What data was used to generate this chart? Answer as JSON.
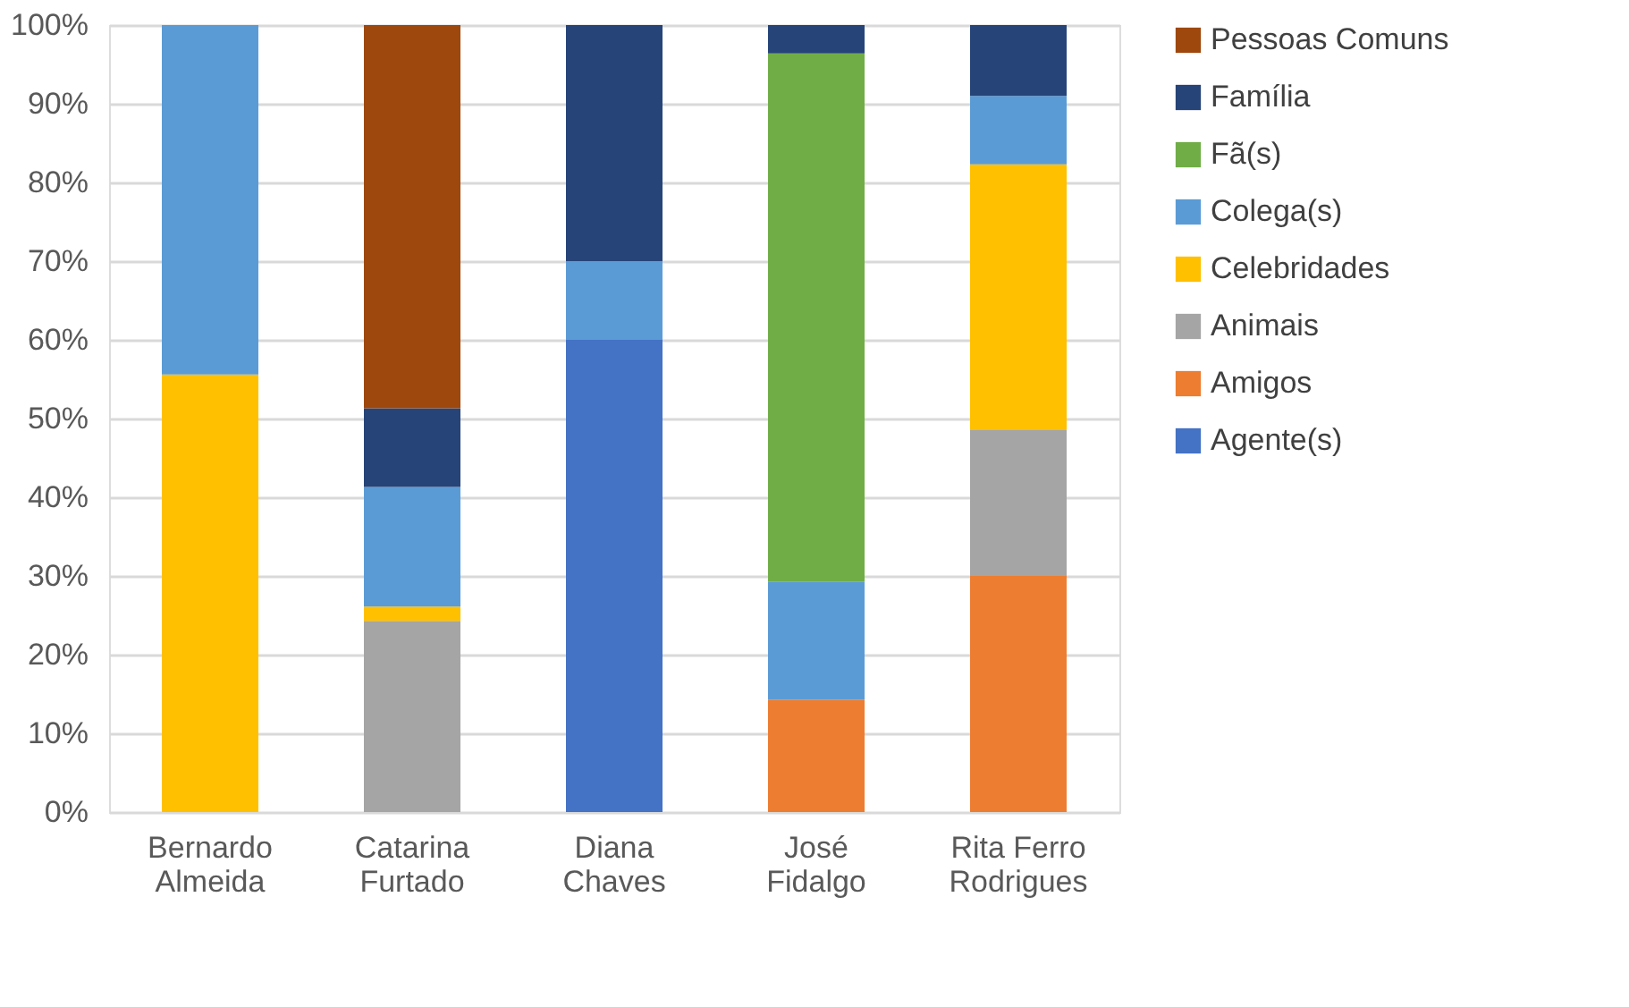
{
  "chart_data": {
    "type": "bar",
    "stacked": true,
    "categories": [
      "Bernardo\nAlmeida",
      "Catarina\nFurtado",
      "Diana\nChaves",
      "José\nFidalgo",
      "Rita Ferro\nRodrigues"
    ],
    "series": [
      {
        "name": "Agente(s)",
        "color": "#4472c4",
        "values": [
          null,
          null,
          60,
          null,
          null
        ]
      },
      {
        "name": "Amigos",
        "color": "#ed7d31",
        "values": [
          null,
          null,
          null,
          14.3,
          30
        ]
      },
      {
        "name": "Animais",
        "color": "#a5a5a5",
        "values": [
          null,
          24.3,
          null,
          null,
          18.6
        ]
      },
      {
        "name": "Celebridades",
        "color": "#ffc000",
        "values": [
          55.6,
          1.8,
          null,
          null,
          33.7
        ]
      },
      {
        "name": "Colega(s)",
        "color": "#5b9bd5",
        "values": [
          44.4,
          15.2,
          10,
          15.0,
          8.7
        ]
      },
      {
        "name": "Fã(s)",
        "color": "#70ad47",
        "values": [
          null,
          null,
          null,
          67.1,
          null
        ]
      },
      {
        "name": "Família",
        "color": "#264478",
        "values": [
          null,
          10,
          30,
          3.6,
          9.0
        ]
      },
      {
        "name": "Pessoas Comuns",
        "color": "#9e480e",
        "values": [
          null,
          48.7,
          null,
          null,
          null
        ]
      }
    ],
    "ylim": [
      0,
      100
    ],
    "yticks": [
      {
        "value": 0,
        "label": "0%"
      },
      {
        "value": 10,
        "label": "10%"
      },
      {
        "value": 20,
        "label": "20%"
      },
      {
        "value": 30,
        "label": "30%"
      },
      {
        "value": 40,
        "label": "40%"
      },
      {
        "value": 50,
        "label": "50%"
      },
      {
        "value": 60,
        "label": "60%"
      },
      {
        "value": 70,
        "label": "70%"
      },
      {
        "value": 80,
        "label": "80%"
      },
      {
        "value": 90,
        "label": "90%"
      },
      {
        "value": 100,
        "label": "100%"
      }
    ],
    "grid": "y",
    "legend": "right"
  }
}
